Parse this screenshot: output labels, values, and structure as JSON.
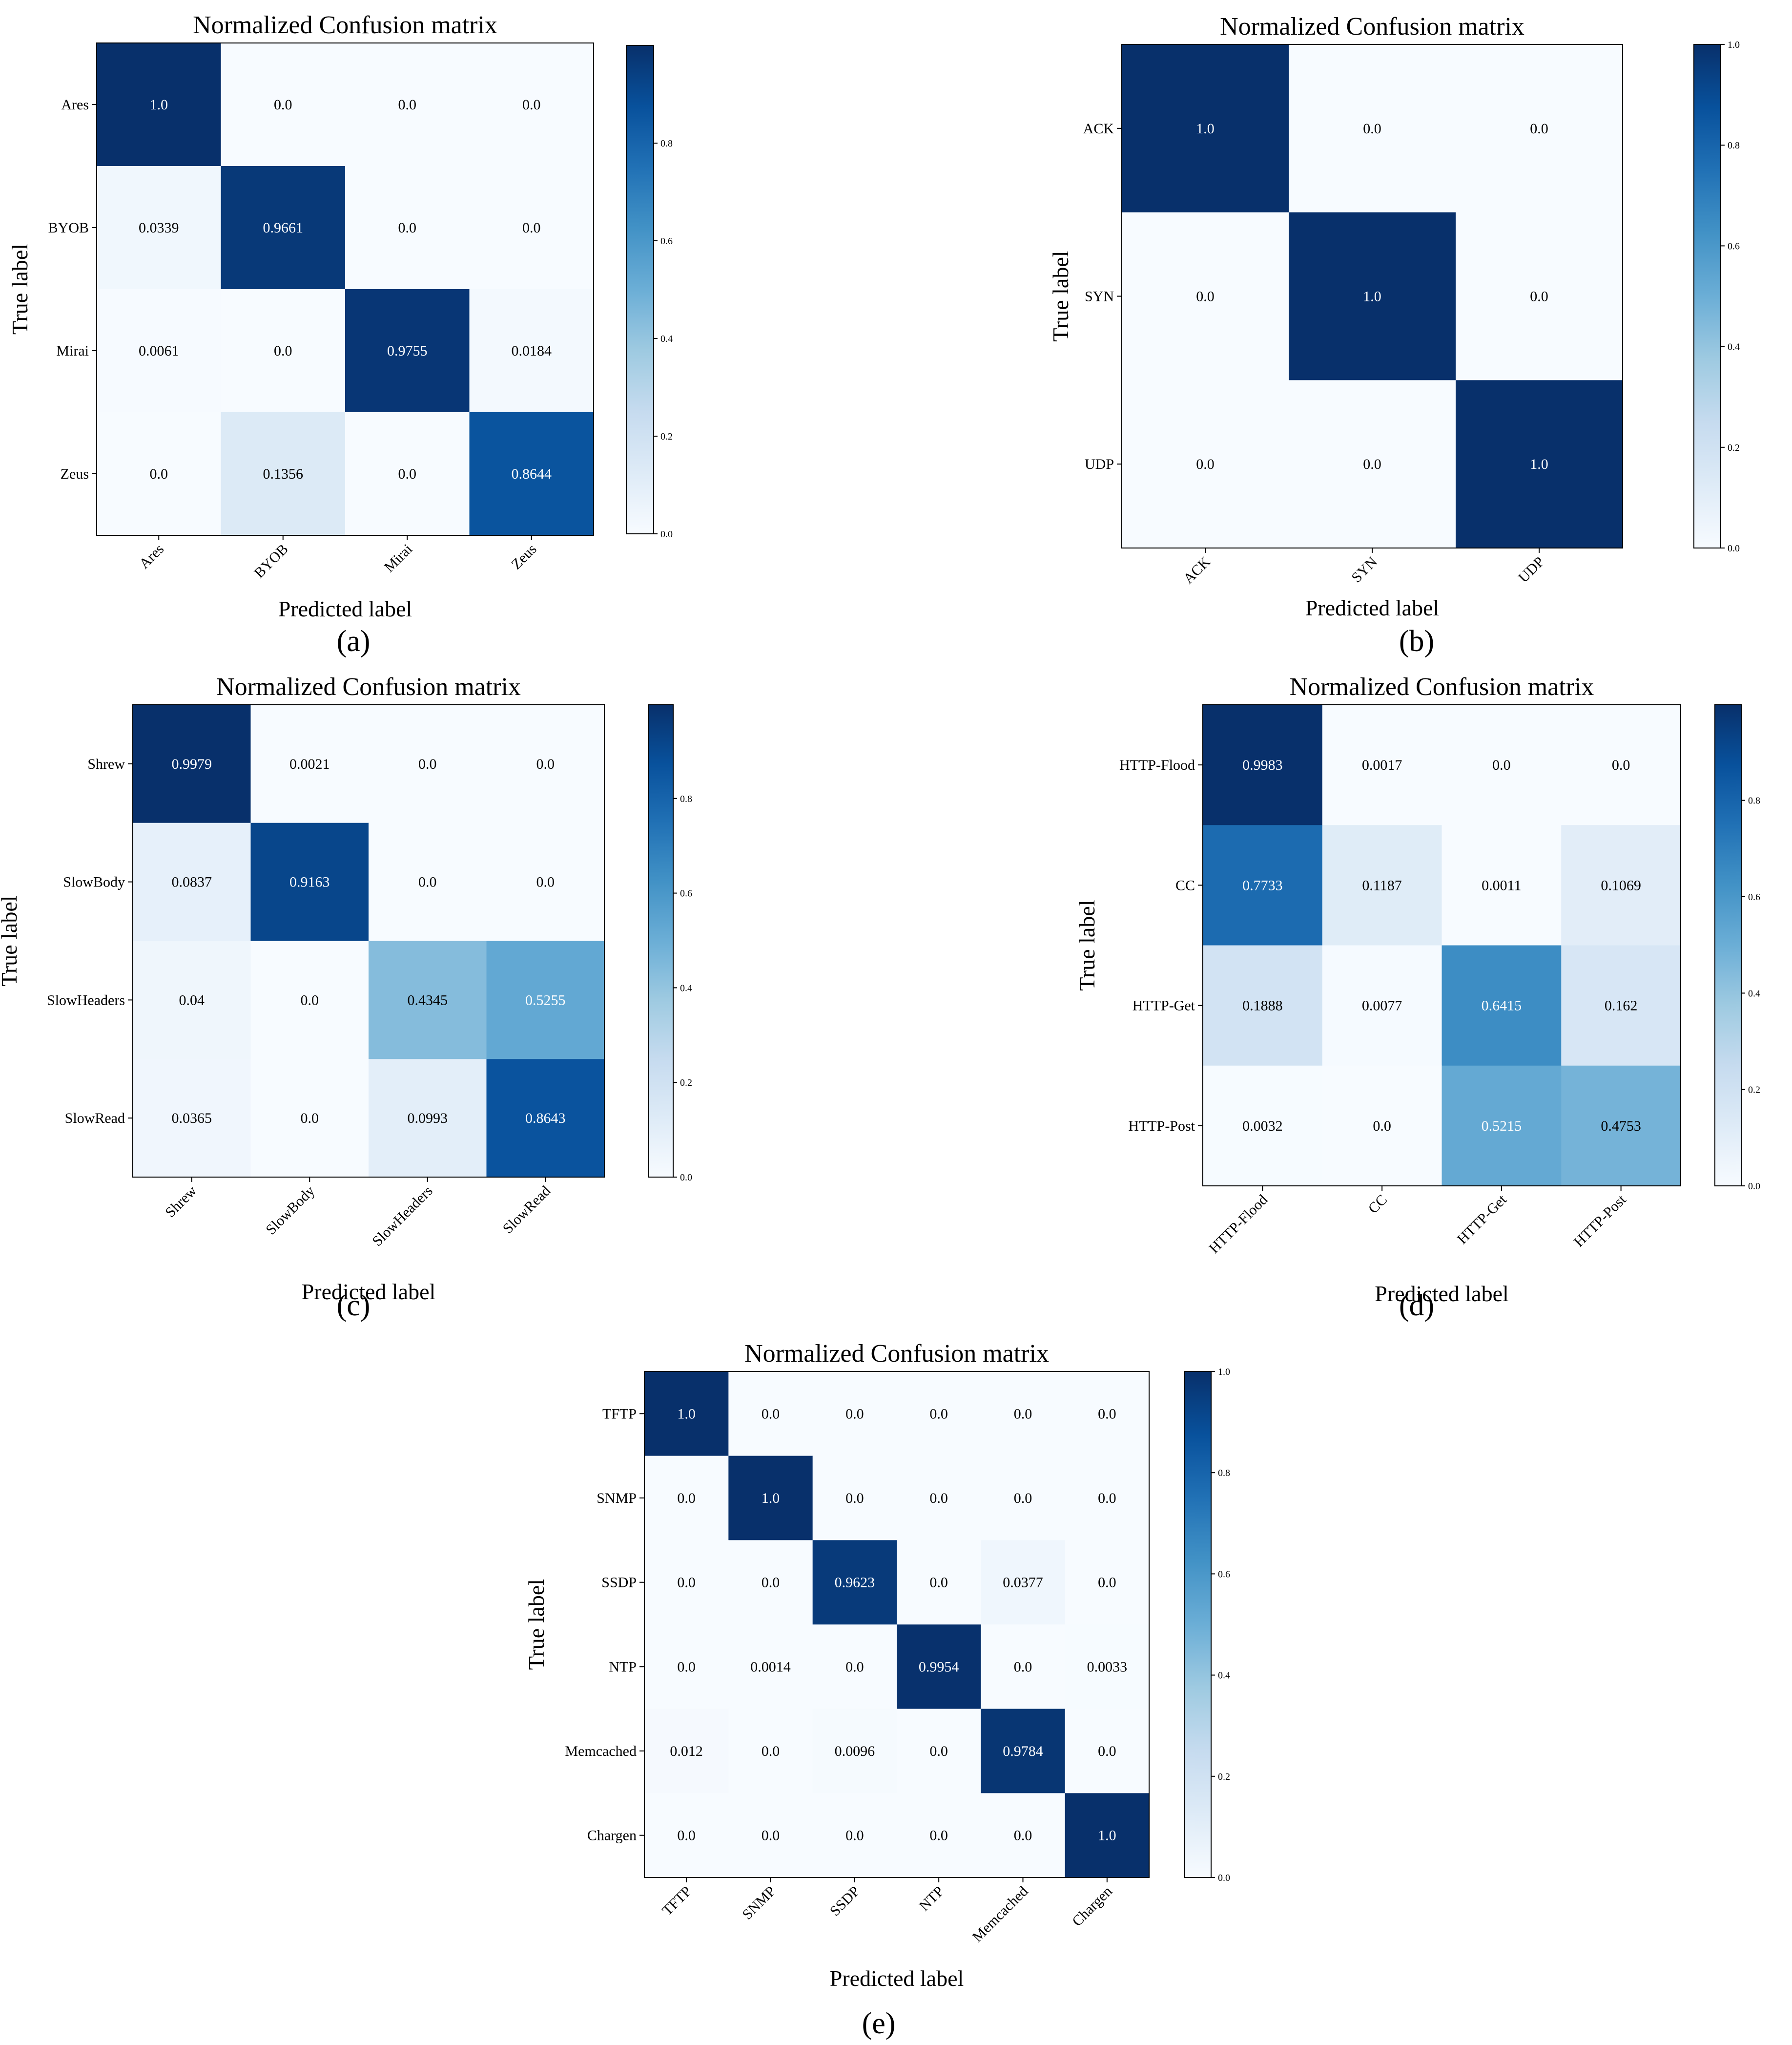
{
  "colors": {
    "colormap_low": "#f7fbff",
    "colormap_high": "#08306b",
    "frame": "#000000",
    "text_dark": "#000000",
    "text_light": "#ffffff"
  },
  "chart_data": [
    {
      "panel_label": "(a)",
      "type": "heatmap",
      "title": "Normalized Confusion matrix",
      "xlabel": "Predicted label",
      "ylabel": "True label",
      "classes": [
        "Ares",
        "BYOB",
        "Mirai",
        "Zeus"
      ],
      "matrix": [
        [
          1.0,
          0.0,
          0.0,
          0.0
        ],
        [
          0.0339,
          0.9661,
          0.0,
          0.0
        ],
        [
          0.0061,
          0.0,
          0.9755,
          0.0184
        ],
        [
          0.0,
          0.1356,
          0.0,
          0.8644
        ]
      ],
      "cell_labels": [
        [
          "1.0",
          "0.0",
          "0.0",
          "0.0"
        ],
        [
          "0.0339",
          "0.9661",
          "0.0",
          "0.0"
        ],
        [
          "0.0061",
          "0.0",
          "0.9755",
          "0.0184"
        ],
        [
          "0.0",
          "0.1356",
          "0.0",
          "0.8644"
        ]
      ],
      "colorbar_range": [
        0.0,
        1.0
      ],
      "colorbar_ticks": [
        "0.0",
        "0.2",
        "0.4",
        "0.6",
        "0.8"
      ]
    },
    {
      "panel_label": "(b)",
      "type": "heatmap",
      "title": "Normalized Confusion matrix",
      "xlabel": "Predicted label",
      "ylabel": "True label",
      "classes": [
        "ACK",
        "SYN",
        "UDP"
      ],
      "matrix": [
        [
          1.0,
          0.0,
          0.0
        ],
        [
          0.0,
          1.0,
          0.0
        ],
        [
          0.0,
          0.0,
          1.0
        ]
      ],
      "cell_labels": [
        [
          "1.0",
          "0.0",
          "0.0"
        ],
        [
          "0.0",
          "1.0",
          "0.0"
        ],
        [
          "0.0",
          "0.0",
          "1.0"
        ]
      ],
      "colorbar_range": [
        0.0,
        1.0
      ],
      "colorbar_ticks": [
        "0.0",
        "0.2",
        "0.4",
        "0.6",
        "0.8",
        "1.0"
      ]
    },
    {
      "panel_label": "(c)",
      "type": "heatmap",
      "title": "Normalized Confusion matrix",
      "xlabel": "Predicted label",
      "ylabel": "True label",
      "classes": [
        "Shrew",
        "SlowBody",
        "SlowHeaders",
        "SlowRead"
      ],
      "matrix": [
        [
          0.9979,
          0.0021,
          0.0,
          0.0
        ],
        [
          0.0837,
          0.9163,
          0.0,
          0.0
        ],
        [
          0.04,
          0.0,
          0.4345,
          0.5255
        ],
        [
          0.0365,
          0.0,
          0.0993,
          0.8643
        ]
      ],
      "cell_labels": [
        [
          "0.9979",
          "0.0021",
          "0.0",
          "0.0"
        ],
        [
          "0.0837",
          "0.9163",
          "0.0",
          "0.0"
        ],
        [
          "0.04",
          "0.0",
          "0.4345",
          "0.5255"
        ],
        [
          "0.0365",
          "0.0",
          "0.0993",
          "0.8643"
        ]
      ],
      "colorbar_range": [
        0.0,
        1.0
      ],
      "colorbar_ticks": [
        "0.0",
        "0.2",
        "0.4",
        "0.6",
        "0.8"
      ]
    },
    {
      "panel_label": "(d)",
      "type": "heatmap",
      "title": "Normalized Confusion matrix",
      "xlabel": "Predicted label",
      "ylabel": "True label",
      "classes": [
        "HTTP-Flood",
        "CC",
        "HTTP-Get",
        "HTTP-Post"
      ],
      "matrix": [
        [
          0.9983,
          0.0017,
          0.0,
          0.0
        ],
        [
          0.7733,
          0.1187,
          0.0011,
          0.1069
        ],
        [
          0.1888,
          0.0077,
          0.6415,
          0.162
        ],
        [
          0.0032,
          0.0,
          0.5215,
          0.4753
        ]
      ],
      "cell_labels": [
        [
          "0.9983",
          "0.0017",
          "0.0",
          "0.0"
        ],
        [
          "0.7733",
          "0.1187",
          "0.0011",
          "0.1069"
        ],
        [
          "0.1888",
          "0.0077",
          "0.6415",
          "0.162"
        ],
        [
          "0.0032",
          "0.0",
          "0.5215",
          "0.4753"
        ]
      ],
      "colorbar_range": [
        0.0,
        1.0
      ],
      "colorbar_ticks": [
        "0.0",
        "0.2",
        "0.4",
        "0.6",
        "0.8"
      ]
    },
    {
      "panel_label": "(e)",
      "type": "heatmap",
      "title": "Normalized Confusion matrix",
      "xlabel": "Predicted label",
      "ylabel": "True label",
      "classes": [
        "TFTP",
        "SNMP",
        "SSDP",
        "NTP",
        "Memcached",
        "Chargen"
      ],
      "matrix": [
        [
          1.0,
          0.0,
          0.0,
          0.0,
          0.0,
          0.0
        ],
        [
          0.0,
          1.0,
          0.0,
          0.0,
          0.0,
          0.0
        ],
        [
          0.0,
          0.0,
          0.9623,
          0.0,
          0.0377,
          0.0
        ],
        [
          0.0,
          0.0014,
          0.0,
          0.9954,
          0.0,
          0.0033
        ],
        [
          0.012,
          0.0,
          0.0096,
          0.0,
          0.9784,
          0.0
        ],
        [
          0.0,
          0.0,
          0.0,
          0.0,
          0.0,
          1.0
        ]
      ],
      "cell_labels": [
        [
          "1.0",
          "0.0",
          "0.0",
          "0.0",
          "0.0",
          "0.0"
        ],
        [
          "0.0",
          "1.0",
          "0.0",
          "0.0",
          "0.0",
          "0.0"
        ],
        [
          "0.0",
          "0.0",
          "0.9623",
          "0.0",
          "0.0377",
          "0.0"
        ],
        [
          "0.0",
          "0.0014",
          "0.0",
          "0.9954",
          "0.0",
          "0.0033"
        ],
        [
          "0.012",
          "0.0",
          "0.0096",
          "0.0",
          "0.9784",
          "0.0"
        ],
        [
          "0.0",
          "0.0",
          "0.0",
          "0.0",
          "0.0",
          "1.0"
        ]
      ],
      "colorbar_range": [
        0.0,
        1.0
      ],
      "colorbar_ticks": [
        "0.0",
        "0.2",
        "0.4",
        "0.6",
        "0.8",
        "1.0"
      ]
    }
  ]
}
